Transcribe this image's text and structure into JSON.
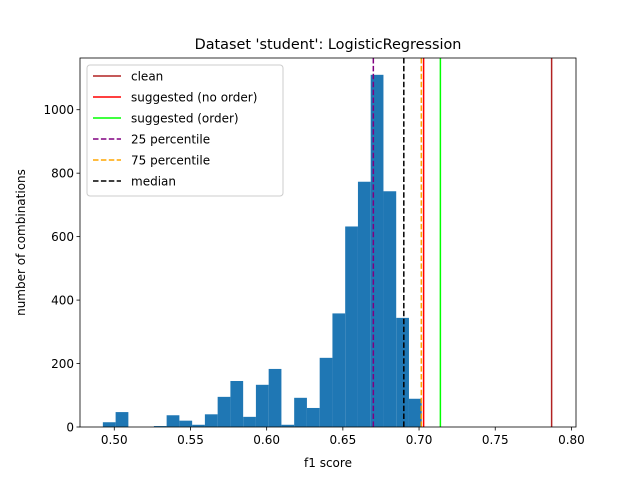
{
  "chart_data": {
    "type": "bar",
    "title": "Dataset 'student': LogisticRegression",
    "xlabel": "f1 score",
    "ylabel": "number of combinations",
    "xlim": [
      0.4775,
      0.803
    ],
    "ylim": [
      0,
      1163
    ],
    "grid": false,
    "bar_color": "#1f77b4",
    "xticks": [
      0.5,
      0.55,
      0.6,
      0.65,
      0.7,
      0.75,
      0.8
    ],
    "xtick_labels": [
      "0.50",
      "0.55",
      "0.60",
      "0.65",
      "0.70",
      "0.75",
      "0.80"
    ],
    "yticks": [
      0,
      200,
      400,
      600,
      800,
      1000
    ],
    "ytick_labels": [
      "0",
      "200",
      "400",
      "600",
      "800",
      "1000"
    ],
    "histogram": {
      "bin_start": 0.4925,
      "bin_width": 0.00837,
      "counts": [
        15,
        47,
        0,
        0,
        3,
        37,
        20,
        7,
        40,
        95,
        145,
        32,
        133,
        183,
        7,
        92,
        60,
        218,
        358,
        632,
        773,
        1110,
        743,
        344,
        89
      ]
    },
    "reference_lines": [
      {
        "name": "clean",
        "x": 0.787,
        "color": "#b22222",
        "style": "solid"
      },
      {
        "name": "suggested (no order)",
        "x": 0.703,
        "color": "#ff0000",
        "style": "solid"
      },
      {
        "name": "suggested (order)",
        "x": 0.714,
        "color": "#00ff00",
        "style": "solid"
      },
      {
        "name": "25 percentile",
        "x": 0.67,
        "color": "#800080",
        "style": "dashed"
      },
      {
        "name": "75 percentile",
        "x": 0.7015,
        "color": "#ffa500",
        "style": "dashed"
      },
      {
        "name": "median",
        "x": 0.69,
        "color": "#000000",
        "style": "dashed"
      }
    ],
    "legend": {
      "placement": "top-left",
      "entries": [
        "clean",
        "suggested (no order)",
        "suggested (order)",
        "25 percentile",
        "75 percentile",
        "median"
      ]
    }
  }
}
